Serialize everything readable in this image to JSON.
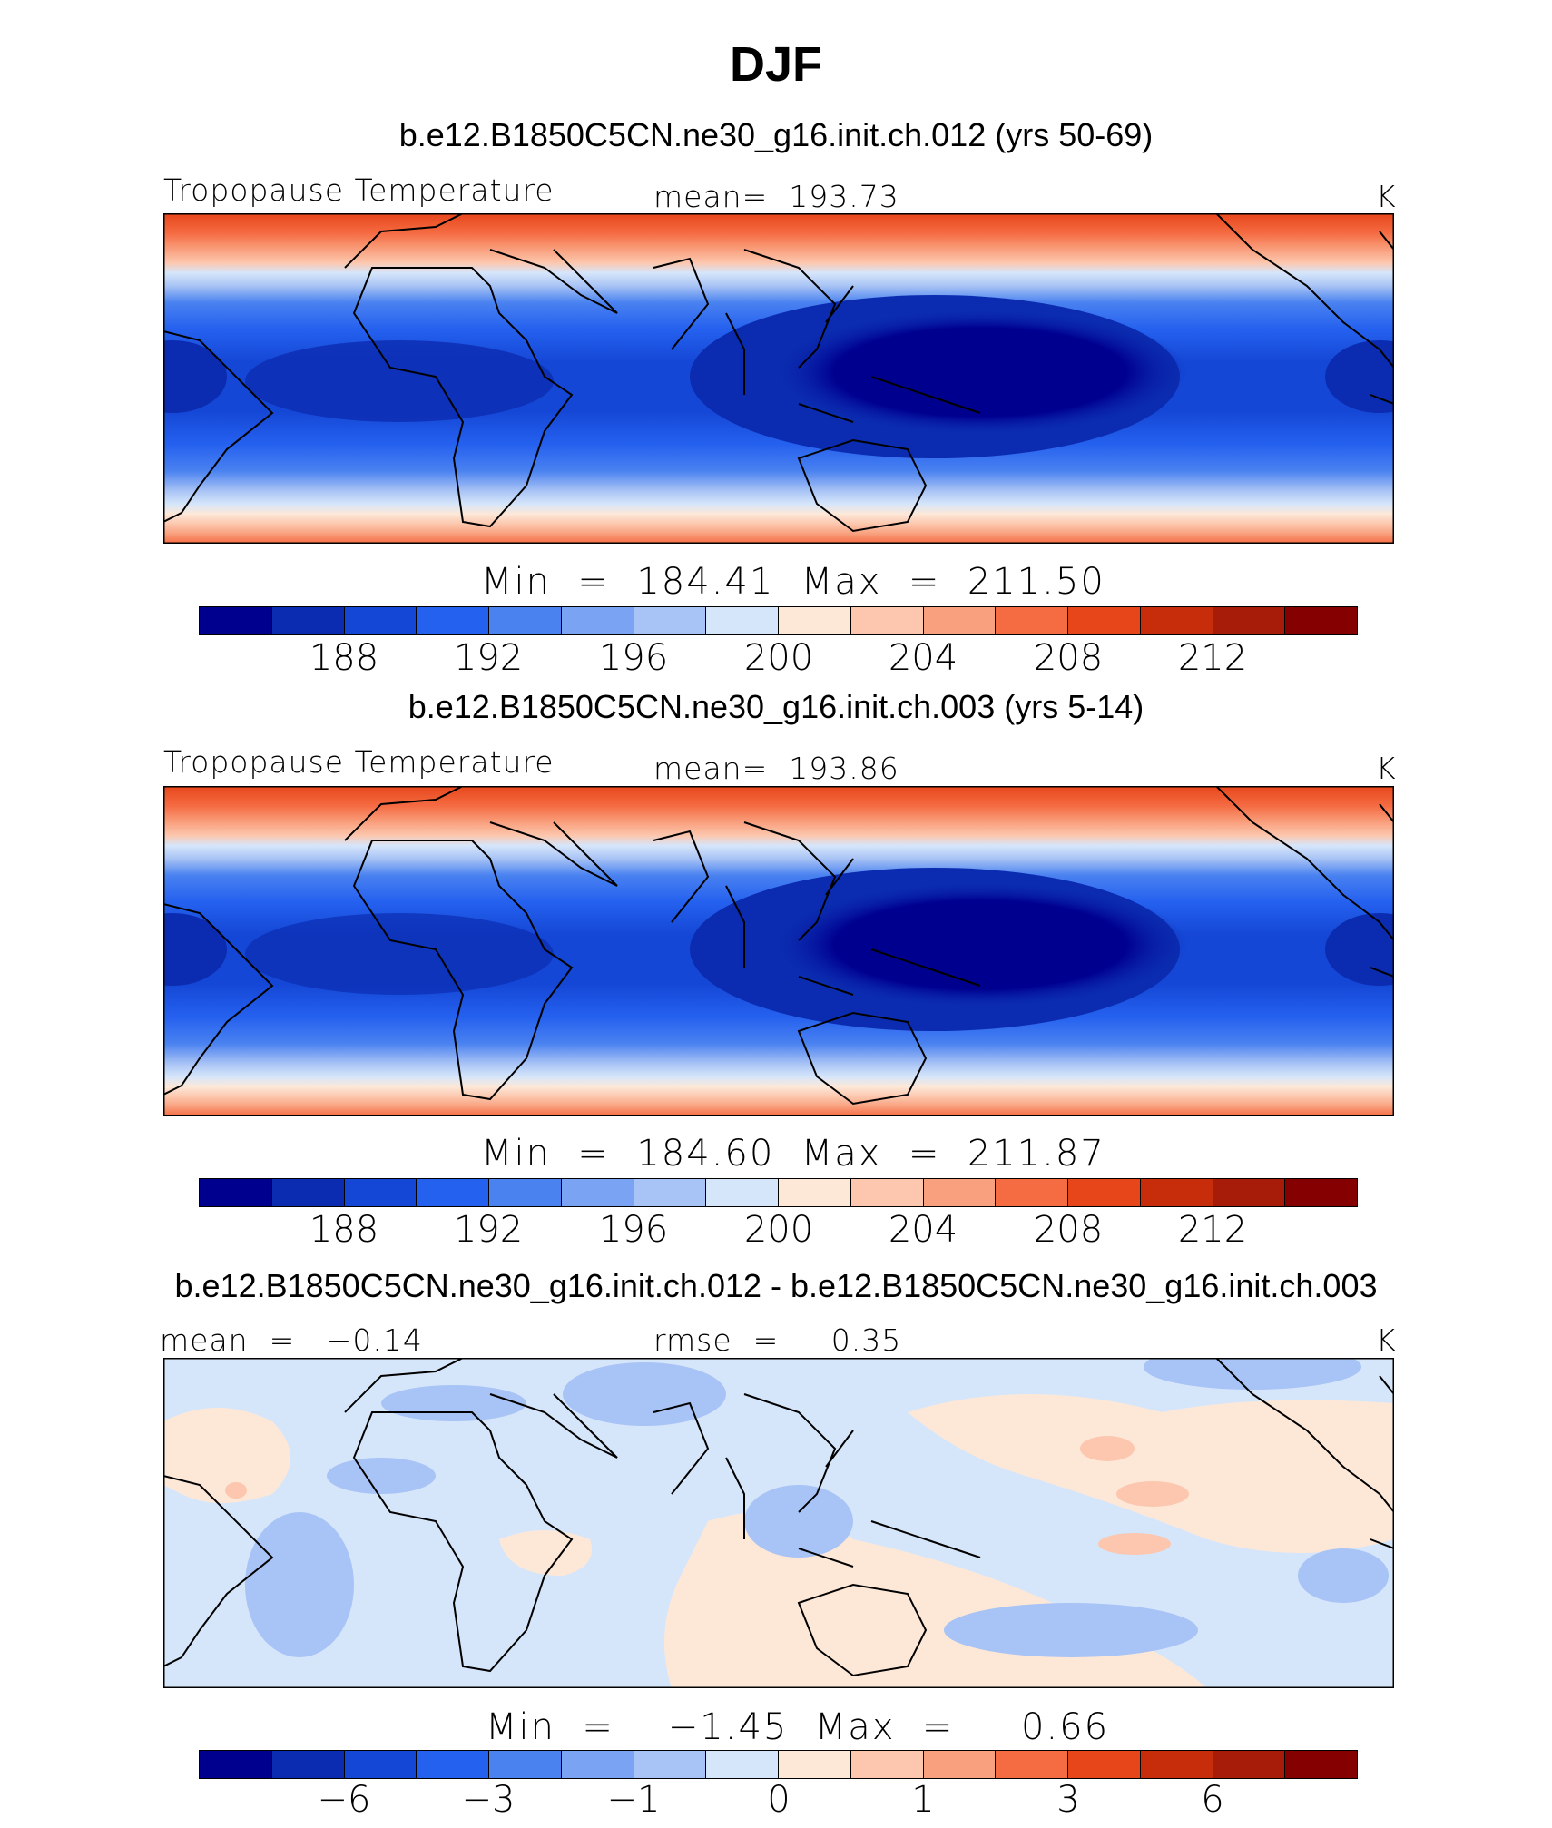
{
  "title": "DJF",
  "panels": [
    {
      "case": "b.e12.B1850C5CN.ne30_g16.init.ch.012 (yrs 50-69)",
      "left_label": "Tropopause Temperature",
      "center_label": "mean=  193.73",
      "unit": "K",
      "stats": "Min  =  184.41  Max  =  211.50",
      "ticks": [
        "188",
        "192",
        "196",
        "200",
        "204",
        "208",
        "212"
      ]
    },
    {
      "case": "b.e12.B1850C5CN.ne30_g16.init.ch.003 (yrs 5-14)",
      "left_label": "Tropopause Temperature",
      "center_label": "mean=  193.86",
      "unit": "K",
      "stats": "Min  =  184.60  Max  =  211.87",
      "ticks": [
        "188",
        "192",
        "196",
        "200",
        "204",
        "208",
        "212"
      ]
    },
    {
      "case": "b.e12.B1850C5CN.ne30_g16.init.ch.012 - b.e12.B1850C5CN.ne30_g16.init.ch.003",
      "left_label": "mean  =   −0.14",
      "center_label": "rmse  =     0.35",
      "unit": "K",
      "stats": "Min  =    −1.45  Max  =     0.66",
      "ticks": [
        "−6",
        "−3",
        "−1",
        "0",
        "1",
        "3",
        "6"
      ]
    }
  ],
  "colorbar_colors": [
    "#00008f",
    "#0b2cb0",
    "#1547d6",
    "#2561ef",
    "#4a82f0",
    "#7aa3f3",
    "#a8c3f5",
    "#d6e6fa",
    "#fde8d8",
    "#fcc7ae",
    "#f9a07e",
    "#f56b42",
    "#e7461a",
    "#c72d0b",
    "#a71c08",
    "#850000"
  ]
}
